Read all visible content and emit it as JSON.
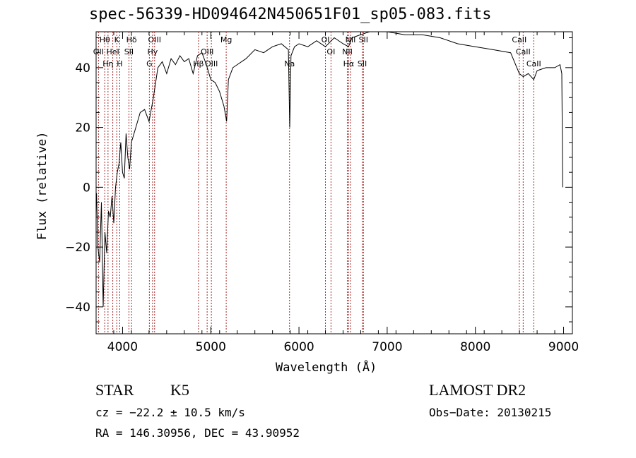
{
  "chart_data": {
    "type": "line",
    "title": "spec-56339-HD094642N450651F01_sp05-083.fits",
    "xlabel": "Wavelength (Å)",
    "ylabel": "Flux (relative)",
    "xlim": [
      3700,
      9100
    ],
    "ylim": [
      -49,
      52
    ],
    "xticks": [
      4000,
      5000,
      6000,
      7000,
      8000,
      9000
    ],
    "yticks": [
      -40,
      -20,
      0,
      20,
      40
    ],
    "grid": false,
    "colors": {
      "spectrum": "#000000",
      "lines": "#a52a2a",
      "axes": "#000000"
    },
    "series": [
      {
        "x": [
          3705,
          3720,
          3740,
          3760,
          3780,
          3800,
          3820,
          3840,
          3860,
          3880,
          3900,
          3920,
          3940,
          3960,
          3980,
          4000,
          4020,
          4040,
          4060,
          4080,
          4100,
          4150,
          4200,
          4250,
          4300,
          4350,
          4400,
          4450,
          4500,
          4550,
          4600,
          4650,
          4700,
          4750,
          4800,
          4850,
          4900,
          4950,
          5000,
          5050,
          5100,
          5150,
          5180,
          5200,
          5250,
          5300,
          5400,
          5500,
          5600,
          5700,
          5800,
          5880,
          5895,
          5910,
          5950,
          6000,
          6100,
          6200,
          6300,
          6400,
          6500,
          6563,
          6600,
          6700,
          6800,
          6900,
          7000,
          7200,
          7400,
          7600,
          7800,
          8000,
          8200,
          8400,
          8498,
          8542,
          8600,
          8662,
          8700,
          8800,
          8900,
          8960,
          8980,
          8990
        ],
        "y": [
          -2,
          -20,
          -25,
          -5,
          -40,
          -15,
          -22,
          -8,
          -10,
          -3,
          -12,
          0,
          5,
          8,
          15,
          5,
          3,
          18,
          10,
          6,
          15,
          20,
          25,
          26,
          22,
          30,
          40,
          42,
          38,
          43,
          41,
          44,
          42,
          43,
          38,
          44,
          45,
          41,
          36,
          35,
          32,
          27,
          22,
          36,
          40,
          41,
          43,
          46,
          45,
          47,
          48,
          46,
          20,
          44,
          47,
          48,
          47,
          49,
          47,
          50,
          48,
          47,
          50,
          51,
          52,
          53,
          52,
          51,
          51,
          50,
          48,
          47,
          46,
          45,
          38,
          37,
          38,
          36,
          39,
          40,
          40,
          41,
          38,
          0
        ]
      }
    ],
    "lines": [
      {
        "name": "Hθ",
        "x": 3798,
        "row": 1
      },
      {
        "name": "OII",
        "x": 3727,
        "row": 2
      },
      {
        "name": "Hη",
        "x": 3835,
        "row": 3
      },
      {
        "name": "HeI",
        "x": 3889,
        "row": 2
      },
      {
        "name": "K",
        "x": 3934,
        "row": 1
      },
      {
        "name": "H",
        "x": 3968,
        "row": 3
      },
      {
        "name": "SII",
        "x": 4072,
        "row": 2
      },
      {
        "name": "Hδ",
        "x": 4102,
        "row": 1
      },
      {
        "name": "G",
        "x": 4304,
        "row": 3
      },
      {
        "name": "Hγ",
        "x": 4340,
        "row": 2
      },
      {
        "name": "OIII",
        "x": 4363,
        "row": 1
      },
      {
        "name": "Hβ",
        "x": 4861,
        "row": 3
      },
      {
        "name": "OIII",
        "x": 4959,
        "row": 2
      },
      {
        "name": "OIII",
        "x": 5007,
        "row": 3
      },
      {
        "name": "Mg",
        "x": 5175,
        "row": 1
      },
      {
        "name": "Na",
        "x": 5893,
        "row": 3
      },
      {
        "name": "OI",
        "x": 6300,
        "row": 1
      },
      {
        "name": "OI",
        "x": 6363,
        "row": 2
      },
      {
        "name": "NII",
        "x": 6548,
        "row": 2
      },
      {
        "name": "Hα",
        "x": 6563,
        "row": 3
      },
      {
        "name": "NII",
        "x": 6584,
        "row": 1
      },
      {
        "name": "SII",
        "x": 6717,
        "row": 3
      },
      {
        "name": "SII",
        "x": 6731,
        "row": 1
      },
      {
        "name": "CaII",
        "x": 8498,
        "row": 1
      },
      {
        "name": "CaII",
        "x": 8542,
        "row": 2
      },
      {
        "name": "CaII",
        "x": 8662,
        "row": 3
      }
    ]
  },
  "info": {
    "object_class": "STAR",
    "subclass": "K5",
    "survey": "LAMOST DR2",
    "cz": "cz = −22.2 ± 10.5 km/s",
    "obs_date": "Obs−Date: 20130215",
    "coords": "RA = 146.30956, DEC =  43.90952"
  }
}
